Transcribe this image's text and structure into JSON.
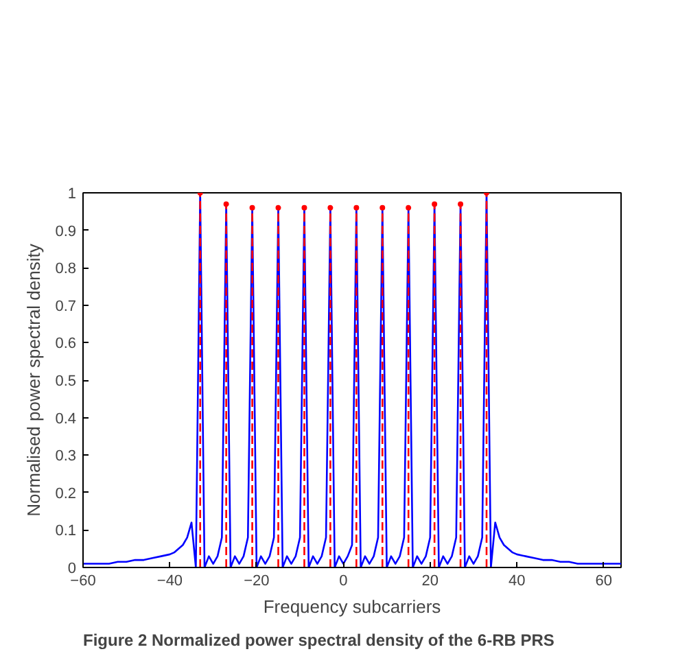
{
  "chart_data": {
    "type": "line",
    "xlabel": "Frequency subcarriers",
    "ylabel": "Normalised power spectral density",
    "annotations": [
      "Figure 2 Normalized power spectral density of the 6-RB PRS"
    ],
    "xlim": [
      -60,
      64
    ],
    "xticks": [
      {
        "value": -60,
        "label": "−60"
      },
      {
        "value": -40,
        "label": "−40"
      },
      {
        "value": -20,
        "label": "−20"
      },
      0,
      20,
      40,
      60
    ],
    "ylim": [
      0,
      1
    ],
    "yticks": [
      0,
      0.1,
      0.2,
      0.3,
      0.4,
      0.5,
      0.6,
      0.7,
      0.8,
      0.9,
      1
    ],
    "grid": false,
    "series": [
      {
        "color": "#0000ff",
        "line_style": "solid",
        "x": [
          -60,
          -58,
          -56,
          -54,
          -52,
          -50,
          -48,
          -46,
          -44,
          -42,
          -40,
          -39,
          -38,
          -37,
          -36,
          -35,
          -34,
          -33,
          -32,
          -31,
          -30,
          -29,
          -28,
          -27,
          -26,
          -25,
          -24,
          -23,
          -22,
          -21,
          -20,
          -19,
          -18,
          -17,
          -16,
          -15,
          -14,
          -13,
          -12,
          -11,
          -10,
          -9,
          -8,
          -7,
          -6,
          -5,
          -4,
          -3,
          -2,
          -1,
          0,
          1,
          2,
          3,
          4,
          5,
          6,
          7,
          8,
          9,
          10,
          11,
          12,
          13,
          14,
          15,
          16,
          17,
          18,
          19,
          20,
          21,
          22,
          23,
          24,
          25,
          26,
          27,
          28,
          29,
          30,
          31,
          32,
          33,
          34,
          35,
          36,
          37,
          38,
          39,
          40,
          42,
          44,
          46,
          48,
          50,
          52,
          54,
          56,
          58,
          60,
          62,
          64
        ],
        "values": [
          0.01,
          0.01,
          0.01,
          0.01,
          0.015,
          0.015,
          0.02,
          0.02,
          0.025,
          0.03,
          0.035,
          0.04,
          0.05,
          0.06,
          0.08,
          0.12,
          0,
          1,
          0,
          0.03,
          0.01,
          0.03,
          0.08,
          0.97,
          0,
          0.03,
          0.01,
          0.03,
          0.08,
          0.96,
          0,
          0.03,
          0.01,
          0.03,
          0.08,
          0.96,
          0,
          0.03,
          0.01,
          0.03,
          0.08,
          0.96,
          0,
          0.03,
          0.01,
          0.03,
          0.08,
          0.96,
          0,
          0.03,
          0.01,
          0.03,
          0.06,
          0.96,
          0,
          0.03,
          0.01,
          0.03,
          0.08,
          0.96,
          0,
          0.03,
          0.01,
          0.03,
          0.08,
          0.96,
          0,
          0.03,
          0.01,
          0.03,
          0.08,
          0.97,
          0,
          0.03,
          0.01,
          0.03,
          0.08,
          0.97,
          0,
          0.03,
          0.01,
          0.03,
          0.08,
          1,
          0,
          0.12,
          0.08,
          0.06,
          0.05,
          0.04,
          0.035,
          0.03,
          0.025,
          0.02,
          0.02,
          0.015,
          0.015,
          0.01,
          0.01,
          0.01,
          0.01,
          0.01,
          0.01
        ]
      },
      {
        "type": "lollipop",
        "color": "#ff0000",
        "line_style": "dashed",
        "marker": "circle",
        "x": [
          -33,
          -27,
          -21,
          -15,
          -9,
          -3,
          3,
          9,
          15,
          21,
          27,
          33
        ],
        "values": [
          1,
          0.97,
          0.96,
          0.96,
          0.96,
          0.96,
          0.96,
          0.96,
          0.96,
          0.97,
          0.97,
          1
        ]
      }
    ]
  }
}
